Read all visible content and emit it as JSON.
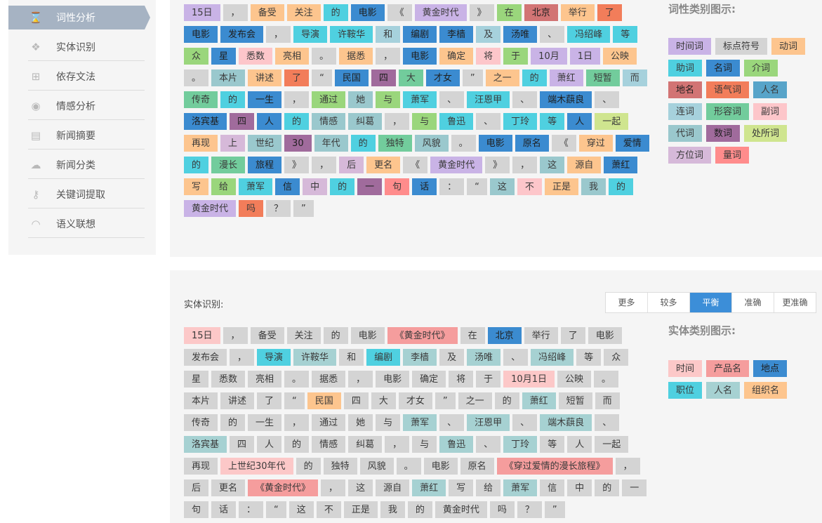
{
  "sidebar": {
    "items": [
      {
        "label": "词性分析",
        "icon": "hourglass-icon",
        "glyph": "⌛",
        "active": true
      },
      {
        "label": "实体识别",
        "icon": "cube-icon",
        "glyph": "❖",
        "active": false
      },
      {
        "label": "依存文法",
        "icon": "sitemap-icon",
        "glyph": "⊞",
        "active": false
      },
      {
        "label": "情感分析",
        "icon": "eye-icon",
        "glyph": "◉",
        "active": false
      },
      {
        "label": "新闻摘要",
        "icon": "notebook-icon",
        "glyph": "▤",
        "active": false
      },
      {
        "label": "新闻分类",
        "icon": "comments-icon",
        "glyph": "☁",
        "active": false
      },
      {
        "label": "关键词提取",
        "icon": "key-icon",
        "glyph": "⚷",
        "active": false
      },
      {
        "label": "语义联想",
        "icon": "wifi-icon",
        "glyph": "◠",
        "active": false
      }
    ]
  },
  "pos": {
    "legend_title": "词性类别图示:",
    "legend": [
      {
        "t": "时间词",
        "c": "time"
      },
      {
        "t": "标点符号",
        "c": "punct"
      },
      {
        "t": "动词",
        "c": "verb"
      },
      {
        "t": "助词",
        "c": "aux"
      },
      {
        "t": "名词",
        "c": "noun"
      },
      {
        "t": "介词",
        "c": "prep"
      },
      {
        "t": "地名",
        "c": "place"
      },
      {
        "t": "语气词",
        "c": "modal"
      },
      {
        "t": "人名",
        "c": "person"
      },
      {
        "t": "连词",
        "c": "conj"
      },
      {
        "t": "形容词",
        "c": "adj"
      },
      {
        "t": "副词",
        "c": "adv"
      },
      {
        "t": "代词",
        "c": "pron"
      },
      {
        "t": "数词",
        "c": "num"
      },
      {
        "t": "处所词",
        "c": "loc"
      },
      {
        "t": "方位词",
        "c": "dir"
      },
      {
        "t": "量词",
        "c": "meas"
      }
    ],
    "tokens": [
      {
        "t": "15日",
        "c": "time"
      },
      {
        "t": "，",
        "c": "punct"
      },
      {
        "t": "备受",
        "c": "verb"
      },
      {
        "t": "关注",
        "c": "verb"
      },
      {
        "t": "的",
        "c": "aux"
      },
      {
        "t": "电影",
        "c": "noun"
      },
      {
        "t": "《",
        "c": "punct"
      },
      {
        "t": "黄金时代",
        "c": "time"
      },
      {
        "t": "》",
        "c": "punct"
      },
      {
        "t": "在",
        "c": "prep"
      },
      {
        "t": "北京",
        "c": "place"
      },
      {
        "t": "举行",
        "c": "verb"
      },
      {
        "t": "了",
        "c": "modal"
      },
      {
        "t": "电影",
        "c": "noun"
      },
      {
        "t": "发布会",
        "c": "noun"
      },
      {
        "t": "，",
        "c": "punct"
      },
      {
        "t": "导演",
        "c": "aux"
      },
      {
        "t": "许鞍华",
        "c": "aux"
      },
      {
        "t": "和",
        "c": "conj"
      },
      {
        "t": "编剧",
        "c": "noun"
      },
      {
        "t": "李樯",
        "c": "noun"
      },
      {
        "t": "及",
        "c": "conj"
      },
      {
        "t": "汤唯",
        "c": "noun"
      },
      {
        "t": "、",
        "c": "punct"
      },
      {
        "t": "冯绍峰",
        "c": "aux"
      },
      {
        "t": "等",
        "c": "aux"
      },
      {
        "t": "众",
        "c": "prep"
      },
      {
        "t": "星",
        "c": "noun"
      },
      {
        "t": "悉数",
        "c": "adv"
      },
      {
        "t": "亮相",
        "c": "verb"
      },
      {
        "t": "。",
        "c": "punct"
      },
      {
        "t": "据悉",
        "c": "verb"
      },
      {
        "t": "，",
        "c": "punct"
      },
      {
        "t": "电影",
        "c": "noun"
      },
      {
        "t": "确定",
        "c": "verb"
      },
      {
        "t": "将",
        "c": "adv"
      },
      {
        "t": "于",
        "c": "prep"
      },
      {
        "t": "10月",
        "c": "time"
      },
      {
        "t": "1日",
        "c": "time"
      },
      {
        "t": "公映",
        "c": "verb"
      },
      {
        "t": "。",
        "c": "punct"
      },
      {
        "t": "本片",
        "c": "pron"
      },
      {
        "t": "讲述",
        "c": "verb"
      },
      {
        "t": "了",
        "c": "modal"
      },
      {
        "t": "“",
        "c": "punct"
      },
      {
        "t": "民国",
        "c": "noun"
      },
      {
        "t": "四",
        "c": "num"
      },
      {
        "t": "大",
        "c": "adj"
      },
      {
        "t": "才女",
        "c": "noun"
      },
      {
        "t": "”",
        "c": "punct"
      },
      {
        "t": "之一",
        "c": "verb"
      },
      {
        "t": "的",
        "c": "aux"
      },
      {
        "t": "萧红",
        "c": "time"
      },
      {
        "t": "短暂",
        "c": "adj"
      },
      {
        "t": "而",
        "c": "conj"
      },
      {
        "t": "传奇",
        "c": "adj"
      },
      {
        "t": "的",
        "c": "aux"
      },
      {
        "t": "一生",
        "c": "noun"
      },
      {
        "t": "，",
        "c": "punct"
      },
      {
        "t": "通过",
        "c": "prep"
      },
      {
        "t": "她",
        "c": "pron"
      },
      {
        "t": "与",
        "c": "prep"
      },
      {
        "t": "萧军",
        "c": "aux"
      },
      {
        "t": "、",
        "c": "punct"
      },
      {
        "t": "汪恩甲",
        "c": "aux"
      },
      {
        "t": "、",
        "c": "punct"
      },
      {
        "t": "端木蕻良",
        "c": "noun"
      },
      {
        "t": "、",
        "c": "punct"
      },
      {
        "t": "洛宾基",
        "c": "noun"
      },
      {
        "t": "四",
        "c": "num"
      },
      {
        "t": "人",
        "c": "noun"
      },
      {
        "t": "的",
        "c": "aux"
      },
      {
        "t": "情感",
        "c": "pron"
      },
      {
        "t": "纠葛",
        "c": "pron"
      },
      {
        "t": "，",
        "c": "punct"
      },
      {
        "t": "与",
        "c": "prep"
      },
      {
        "t": "鲁迅",
        "c": "aux"
      },
      {
        "t": "、",
        "c": "punct"
      },
      {
        "t": "丁玲",
        "c": "aux"
      },
      {
        "t": "等",
        "c": "aux"
      },
      {
        "t": "人",
        "c": "noun"
      },
      {
        "t": "一起",
        "c": "loc"
      },
      {
        "t": "再现",
        "c": "verb"
      },
      {
        "t": "上",
        "c": "dir"
      },
      {
        "t": "世纪",
        "c": "pron"
      },
      {
        "t": "30",
        "c": "num"
      },
      {
        "t": "年代",
        "c": "pron"
      },
      {
        "t": "的",
        "c": "aux"
      },
      {
        "t": "独特",
        "c": "adj"
      },
      {
        "t": "风貌",
        "c": "pron"
      },
      {
        "t": "。",
        "c": "punct"
      },
      {
        "t": "电影",
        "c": "noun"
      },
      {
        "t": "原名",
        "c": "noun"
      },
      {
        "t": "《",
        "c": "punct"
      },
      {
        "t": "穿过",
        "c": "verb"
      },
      {
        "t": "爱情",
        "c": "noun"
      },
      {
        "t": "的",
        "c": "aux"
      },
      {
        "t": "漫长",
        "c": "adj"
      },
      {
        "t": "旅程",
        "c": "noun"
      },
      {
        "t": "》",
        "c": "punct"
      },
      {
        "t": "，",
        "c": "punct"
      },
      {
        "t": "后",
        "c": "dir"
      },
      {
        "t": "更名",
        "c": "verb"
      },
      {
        "t": "《",
        "c": "punct"
      },
      {
        "t": "黄金时代",
        "c": "time"
      },
      {
        "t": "》",
        "c": "punct"
      },
      {
        "t": "，",
        "c": "punct"
      },
      {
        "t": "这",
        "c": "pron"
      },
      {
        "t": "源自",
        "c": "verb"
      },
      {
        "t": "萧红",
        "c": "noun"
      },
      {
        "t": "写",
        "c": "verb"
      },
      {
        "t": "给",
        "c": "prep"
      },
      {
        "t": "萧军",
        "c": "aux"
      },
      {
        "t": "信",
        "c": "noun"
      },
      {
        "t": "中",
        "c": "dir"
      },
      {
        "t": "的",
        "c": "aux"
      },
      {
        "t": "一",
        "c": "num"
      },
      {
        "t": "句",
        "c": "meas"
      },
      {
        "t": "话",
        "c": "noun"
      },
      {
        "t": "：",
        "c": "punct"
      },
      {
        "t": "“",
        "c": "punct"
      },
      {
        "t": "这",
        "c": "pron"
      },
      {
        "t": "不",
        "c": "adv"
      },
      {
        "t": "正是",
        "c": "verb"
      },
      {
        "t": "我",
        "c": "pron"
      },
      {
        "t": "的",
        "c": "aux"
      },
      {
        "t": "黄金时代",
        "c": "time"
      },
      {
        "t": "吗",
        "c": "modal"
      },
      {
        "t": "？",
        "c": "punct"
      },
      {
        "t": "”",
        "c": "punct"
      }
    ]
  },
  "ner": {
    "label": "实体识别:",
    "buttons": [
      {
        "label": "更多",
        "active": false
      },
      {
        "label": "较多",
        "active": false
      },
      {
        "label": "平衡",
        "active": true
      },
      {
        "label": "准确",
        "active": false
      },
      {
        "label": "更准确",
        "active": false
      }
    ],
    "legend_title": "实体类别图示:",
    "legend": [
      {
        "t": "时间",
        "c": "e-time"
      },
      {
        "t": "产品名",
        "c": "e-prod"
      },
      {
        "t": "地点",
        "c": "e-loc"
      },
      {
        "t": "职位",
        "c": "e-pos"
      },
      {
        "t": "人名",
        "c": "e-person"
      },
      {
        "t": "组织名",
        "c": "e-org"
      }
    ],
    "tokens": [
      {
        "t": "15日",
        "c": "e-time"
      },
      {
        "t": "，",
        "c": "o"
      },
      {
        "t": "备受",
        "c": "o"
      },
      {
        "t": "关注",
        "c": "o"
      },
      {
        "t": "的",
        "c": "o"
      },
      {
        "t": "电影",
        "c": "o"
      },
      {
        "t": "《黄金时代》",
        "c": "e-prod"
      },
      {
        "t": "在",
        "c": "o"
      },
      {
        "t": "北京",
        "c": "e-loc"
      },
      {
        "t": "举行",
        "c": "o"
      },
      {
        "t": "了",
        "c": "o"
      },
      {
        "t": "电影",
        "c": "o"
      },
      {
        "t": "发布会",
        "c": "o"
      },
      {
        "t": "，",
        "c": "o"
      },
      {
        "t": "导演",
        "c": "e-pos"
      },
      {
        "t": "许鞍华",
        "c": "e-person"
      },
      {
        "t": "和",
        "c": "o"
      },
      {
        "t": "编剧",
        "c": "e-pos"
      },
      {
        "t": "李樯",
        "c": "e-person"
      },
      {
        "t": "及",
        "c": "o"
      },
      {
        "t": "汤唯",
        "c": "e-person"
      },
      {
        "t": "、",
        "c": "o"
      },
      {
        "t": "冯绍峰",
        "c": "e-person"
      },
      {
        "t": "等",
        "c": "o"
      },
      {
        "t": "众",
        "c": "o"
      },
      {
        "t": "星",
        "c": "o"
      },
      {
        "t": "悉数",
        "c": "o"
      },
      {
        "t": "亮相",
        "c": "o"
      },
      {
        "t": "。",
        "c": "o"
      },
      {
        "t": "据悉",
        "c": "o"
      },
      {
        "t": "，",
        "c": "o"
      },
      {
        "t": "电影",
        "c": "o"
      },
      {
        "t": "确定",
        "c": "o"
      },
      {
        "t": "将",
        "c": "o"
      },
      {
        "t": "于",
        "c": "o"
      },
      {
        "t": "10月1日",
        "c": "e-time"
      },
      {
        "t": "公映",
        "c": "o"
      },
      {
        "t": "。",
        "c": "o"
      },
      {
        "t": "本片",
        "c": "o"
      },
      {
        "t": "讲述",
        "c": "o"
      },
      {
        "t": "了",
        "c": "o"
      },
      {
        "t": "“",
        "c": "o"
      },
      {
        "t": "民国",
        "c": "e-org"
      },
      {
        "t": "四",
        "c": "o"
      },
      {
        "t": "大",
        "c": "o"
      },
      {
        "t": "才女",
        "c": "o"
      },
      {
        "t": "”",
        "c": "o"
      },
      {
        "t": "之一",
        "c": "o"
      },
      {
        "t": "的",
        "c": "o"
      },
      {
        "t": "萧红",
        "c": "e-person"
      },
      {
        "t": "短暂",
        "c": "o"
      },
      {
        "t": "而",
        "c": "o"
      },
      {
        "t": "传奇",
        "c": "o"
      },
      {
        "t": "的",
        "c": "o"
      },
      {
        "t": "一生",
        "c": "o"
      },
      {
        "t": "，",
        "c": "o"
      },
      {
        "t": "通过",
        "c": "o"
      },
      {
        "t": "她",
        "c": "o"
      },
      {
        "t": "与",
        "c": "o"
      },
      {
        "t": "萧军",
        "c": "e-person"
      },
      {
        "t": "、",
        "c": "o"
      },
      {
        "t": "汪恩甲",
        "c": "e-person"
      },
      {
        "t": "、",
        "c": "o"
      },
      {
        "t": "端木蕻良",
        "c": "e-person"
      },
      {
        "t": "、",
        "c": "o"
      },
      {
        "t": "洛宾基",
        "c": "e-person"
      },
      {
        "t": "四",
        "c": "o"
      },
      {
        "t": "人",
        "c": "o"
      },
      {
        "t": "的",
        "c": "o"
      },
      {
        "t": "情感",
        "c": "o"
      },
      {
        "t": "纠葛",
        "c": "o"
      },
      {
        "t": "，",
        "c": "o"
      },
      {
        "t": "与",
        "c": "o"
      },
      {
        "t": "鲁迅",
        "c": "e-person"
      },
      {
        "t": "、",
        "c": "o"
      },
      {
        "t": "丁玲",
        "c": "e-person"
      },
      {
        "t": "等",
        "c": "o"
      },
      {
        "t": "人",
        "c": "o"
      },
      {
        "t": "一起",
        "c": "o"
      },
      {
        "t": "再现",
        "c": "o"
      },
      {
        "t": "上世纪30年代",
        "c": "e-time"
      },
      {
        "t": "的",
        "c": "o"
      },
      {
        "t": "独特",
        "c": "o"
      },
      {
        "t": "风貌",
        "c": "o"
      },
      {
        "t": "。",
        "c": "o"
      },
      {
        "t": "电影",
        "c": "o"
      },
      {
        "t": "原名",
        "c": "o"
      },
      {
        "t": "《穿过爱情的漫长旅程》",
        "c": "e-prod"
      },
      {
        "t": "，",
        "c": "o"
      },
      {
        "t": "后",
        "c": "o"
      },
      {
        "t": "更名",
        "c": "o"
      },
      {
        "t": "《黄金时代》",
        "c": "e-prod"
      },
      {
        "t": "，",
        "c": "o"
      },
      {
        "t": "这",
        "c": "o"
      },
      {
        "t": "源自",
        "c": "o"
      },
      {
        "t": "萧红",
        "c": "e-person"
      },
      {
        "t": "写",
        "c": "o"
      },
      {
        "t": "给",
        "c": "o"
      },
      {
        "t": "萧军",
        "c": "e-person"
      },
      {
        "t": "信",
        "c": "o"
      },
      {
        "t": "中",
        "c": "o"
      },
      {
        "t": "的",
        "c": "o"
      },
      {
        "t": "一",
        "c": "o"
      },
      {
        "t": "句",
        "c": "o"
      },
      {
        "t": "话",
        "c": "o"
      },
      {
        "t": "：",
        "c": "o"
      },
      {
        "t": "“",
        "c": "o"
      },
      {
        "t": "这",
        "c": "o"
      },
      {
        "t": "不",
        "c": "o"
      },
      {
        "t": "正是",
        "c": "o"
      },
      {
        "t": "我",
        "c": "o"
      },
      {
        "t": "的",
        "c": "o"
      },
      {
        "t": "黄金时代",
        "c": "o"
      },
      {
        "t": "吗",
        "c": "o"
      },
      {
        "t": "？",
        "c": "o"
      },
      {
        "t": "”",
        "c": "o"
      }
    ]
  },
  "colors": {
    "time": "#c9b3e6",
    "punct": "#d4d4d4",
    "verb": "#fdc58e",
    "aux": "#4fd0e0",
    "noun": "#3b8bd0",
    "prep": "#9ad67c",
    "place": "#d27474",
    "modal": "#f27d5a",
    "person": "#58a4c9",
    "conj": "#a6d1dc",
    "adj": "#72cc9c",
    "adv": "#fdc6ca",
    "pron": "#9ac8cd",
    "num": "#a06b9c",
    "loc": "#cfe58f",
    "dir": "#d6b9d9",
    "meas": "#ff8c8c",
    "e-time": "#fcc8c8",
    "e-prod": "#f59d9d",
    "e-loc": "#3b8bd0",
    "e-pos": "#4fd0e0",
    "e-person": "#a6d1d2",
    "e-org": "#fdc58e",
    "o": "#d4d4d4",
    "accent": "#3c8ed8",
    "sidebar_active": "#a6b3c3"
  }
}
